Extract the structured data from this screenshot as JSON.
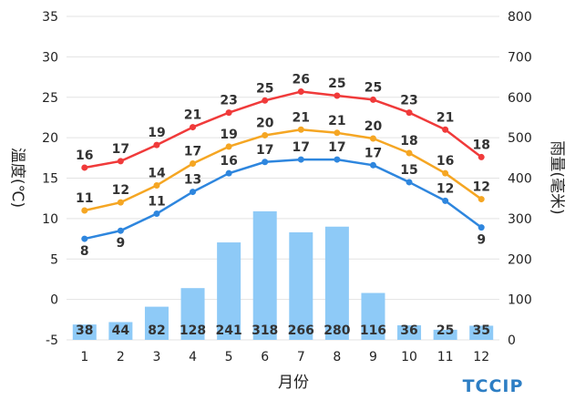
{
  "chart_data": {
    "type": "bar+line",
    "x": [
      1,
      2,
      3,
      4,
      5,
      6,
      7,
      8,
      9,
      10,
      11,
      12
    ],
    "xlabel": "月份",
    "ylabel_left": "溫度(℃)",
    "ylabel_right": "雨量(毫米)",
    "ylim_left": [
      -5,
      35
    ],
    "yticks_left": [
      -5,
      0,
      5,
      10,
      15,
      20,
      25,
      30,
      35
    ],
    "ylim_right": [
      0,
      800
    ],
    "yticks_right": [
      0,
      100,
      200,
      300,
      400,
      500,
      600,
      700,
      800
    ],
    "grid": "horizontal",
    "series": [
      {
        "name": "rainfall",
        "kind": "bar",
        "axis": "right",
        "color": "#8ecaf7",
        "values": [
          38,
          44,
          82,
          128,
          241,
          318,
          266,
          280,
          116,
          36,
          25,
          35
        ]
      },
      {
        "name": "max-temp",
        "kind": "line",
        "axis": "left",
        "color": "#f03a3a",
        "values": [
          16.3,
          17.1,
          19.1,
          21.3,
          23.1,
          24.6,
          25.7,
          25.2,
          24.7,
          23.1,
          21.0,
          17.6
        ],
        "labels": [
          "16",
          "17",
          "19",
          "21",
          "23",
          "25",
          "26",
          "25",
          "25",
          "23",
          "21",
          "18"
        ]
      },
      {
        "name": "mean-temp",
        "kind": "line",
        "axis": "left",
        "color": "#f5a623",
        "values": [
          11.0,
          12.0,
          14.1,
          16.8,
          18.9,
          20.3,
          21.0,
          20.6,
          19.9,
          18.1,
          15.6,
          12.4
        ],
        "labels": [
          "11",
          "12",
          "14",
          "17",
          "19",
          "20",
          "21",
          "21",
          "20",
          "18",
          "16",
          "12"
        ]
      },
      {
        "name": "min-temp",
        "kind": "line",
        "axis": "left",
        "color": "#2e86de",
        "values": [
          7.5,
          8.5,
          10.6,
          13.3,
          15.6,
          17.0,
          17.3,
          17.3,
          16.6,
          14.5,
          12.2,
          8.9
        ],
        "labels": [
          "8",
          "9",
          "11",
          "13",
          "16",
          "17",
          "17",
          "17",
          "17",
          "15",
          "12",
          "9"
        ]
      }
    ],
    "bar_labels": [
      "38",
      "44",
      "82",
      "128",
      "241",
      "318",
      "266",
      "280",
      "116",
      "36",
      "25",
      "35"
    ]
  },
  "logo": {
    "text": "TCCIP"
  }
}
